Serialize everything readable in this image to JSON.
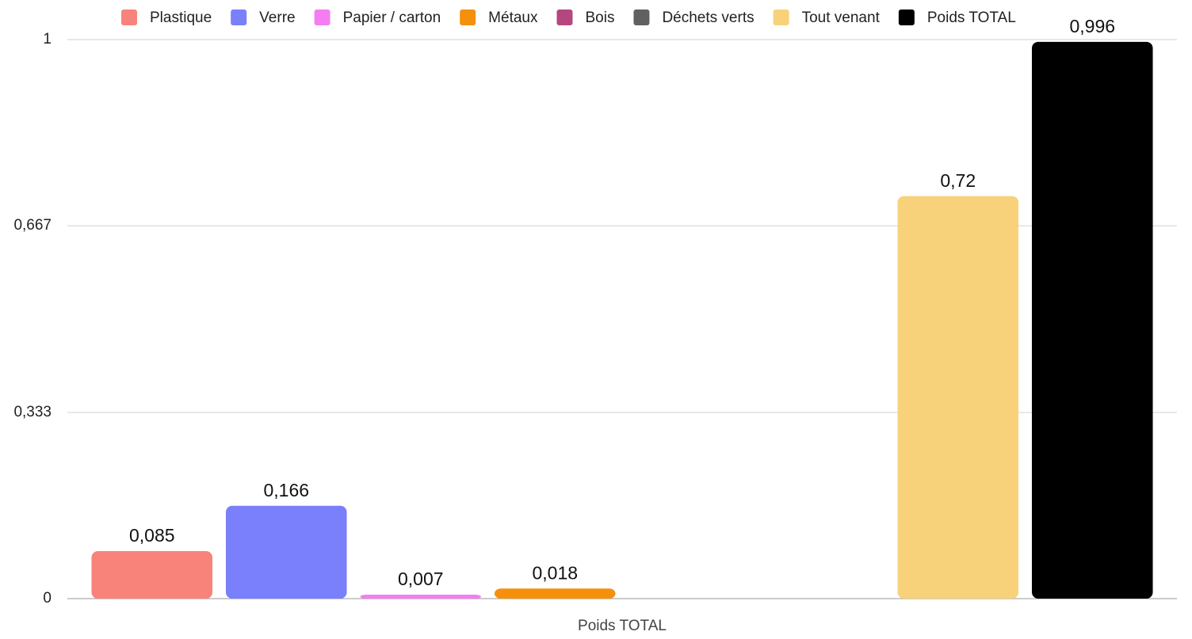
{
  "chart_data": {
    "type": "bar",
    "categories": [
      "Poids TOTAL"
    ],
    "series": [
      {
        "name": "Plastique",
        "color": "#f8837a",
        "values": [
          0.085
        ],
        "value_labels": [
          "0,085"
        ]
      },
      {
        "name": "Verre",
        "color": "#7a7ffb",
        "values": [
          0.166
        ],
        "value_labels": [
          "0,166"
        ]
      },
      {
        "name": "Papier / carton",
        "color": "#f47ef1",
        "values": [
          0.007
        ],
        "value_labels": [
          "0,007"
        ]
      },
      {
        "name": "Métaux",
        "color": "#f5900d",
        "values": [
          0.018
        ],
        "value_labels": [
          "0,018"
        ]
      },
      {
        "name": "Bois",
        "color": "#b5477f",
        "values": [
          null
        ]
      },
      {
        "name": "Déchets verts",
        "color": "#616161",
        "values": [
          null
        ]
      },
      {
        "name": "Tout venant",
        "color": "#f8d27a",
        "values": [
          0.72
        ],
        "value_labels": [
          "0,72"
        ]
      },
      {
        "name": "Poids TOTAL",
        "color": "#000000",
        "values": [
          0.996
        ],
        "value_labels": [
          "0,996"
        ]
      }
    ],
    "ylim": [
      0,
      1
    ],
    "yticks": [
      0,
      {
        "value": 0.333,
        "label": "0,333"
      },
      {
        "value": 0.667,
        "label": "0,667"
      },
      1
    ],
    "grid": true,
    "legend": "top"
  }
}
